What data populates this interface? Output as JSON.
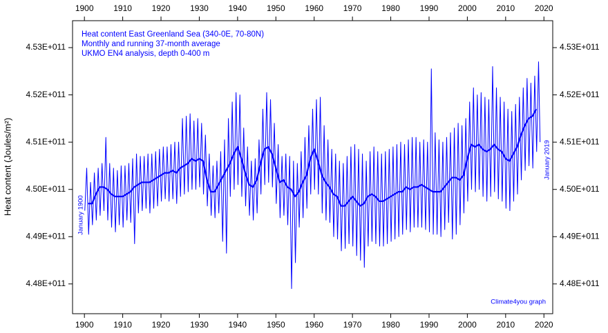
{
  "chart_data": {
    "type": "line",
    "title": "Heat content East Greenland Sea (340-0E, 70-80N)",
    "subtitle": [
      "Monthly and running 37-month average",
      "UKMO EN4 analysis, depth 0-400 m"
    ],
    "ylabel": "Heat content (Joules/m²)",
    "annotations": [
      "January 1900",
      "January 2019",
      "Climate4you graph"
    ],
    "xlim": [
      1896.9,
      2022.3
    ],
    "ylim": [
      447370000000.0,
      453570000000.0
    ],
    "xticks": [
      1900,
      1910,
      1920,
      1930,
      1940,
      1950,
      1960,
      1970,
      1980,
      1990,
      2000,
      2010,
      2020
    ],
    "yticks": [
      {
        "value": 448000000000.0,
        "label": "4.48E+011"
      },
      {
        "value": 449000000000.0,
        "label": "4.49E+011"
      },
      {
        "value": 450000000000.0,
        "label": "4.50E+011"
      },
      {
        "value": 451000000000.0,
        "label": "4.51E+011"
      },
      {
        "value": 452000000000.0,
        "label": "4.52E+011"
      },
      {
        "value": 453000000000.0,
        "label": "4.53E+011"
      }
    ],
    "grid": false,
    "series": [
      {
        "color": "#0000ff",
        "width": 1,
        "x": [
          1900.1,
          1900.6,
          1901.1,
          1901.6,
          1902.1,
          1902.6,
          1903.1,
          1903.6,
          1904.1,
          1904.6,
          1905.1,
          1905.6,
          1906.1,
          1906.6,
          1907.1,
          1907.6,
          1908.1,
          1908.6,
          1909.1,
          1909.6,
          1910.1,
          1910.6,
          1911.1,
          1911.6,
          1912.1,
          1912.6,
          1913.1,
          1913.6,
          1914.1,
          1914.6,
          1915.1,
          1915.6,
          1916.1,
          1916.6,
          1917.1,
          1917.6,
          1918.1,
          1918.6,
          1919.1,
          1919.6,
          1920.1,
          1920.6,
          1921.1,
          1921.6,
          1922.1,
          1922.6,
          1923.1,
          1923.6,
          1924.1,
          1924.6,
          1925.1,
          1925.6,
          1926.1,
          1926.6,
          1927.1,
          1927.6,
          1928.1,
          1928.6,
          1929.1,
          1929.6,
          1930.1,
          1930.6,
          1931.1,
          1931.6,
          1932.1,
          1932.6,
          1933.1,
          1933.6,
          1934.1,
          1934.6,
          1935.1,
          1935.6,
          1936.1,
          1936.6,
          1937.1,
          1937.6,
          1938.1,
          1938.6,
          1939.1,
          1939.6,
          1940.1,
          1940.6,
          1941.1,
          1941.6,
          1942.1,
          1942.6,
          1943.1,
          1943.6,
          1944.1,
          1944.6,
          1945.1,
          1945.6,
          1946.1,
          1946.6,
          1947.1,
          1947.6,
          1948.1,
          1948.6,
          1949.1,
          1949.6,
          1950.1,
          1950.6,
          1951.1,
          1951.6,
          1952.1,
          1952.6,
          1953.1,
          1953.6,
          1954.1,
          1954.6,
          1955.1,
          1955.6,
          1956.1,
          1956.6,
          1957.1,
          1957.6,
          1958.1,
          1958.6,
          1959.1,
          1959.6,
          1960.1,
          1960.6,
          1961.1,
          1961.6,
          1962.1,
          1962.6,
          1963.1,
          1963.6,
          1964.1,
          1964.6,
          1965.1,
          1965.6,
          1966.1,
          1966.6,
          1967.1,
          1967.6,
          1968.1,
          1968.6,
          1969.1,
          1969.6,
          1970.1,
          1970.6,
          1971.1,
          1971.6,
          1972.1,
          1972.6,
          1973.1,
          1973.6,
          1974.1,
          1974.6,
          1975.1,
          1975.6,
          1976.1,
          1976.6,
          1977.1,
          1977.6,
          1978.1,
          1978.6,
          1979.1,
          1979.6,
          1980.1,
          1980.6,
          1981.1,
          1981.6,
          1982.1,
          1982.6,
          1983.1,
          1983.6,
          1984.1,
          1984.6,
          1985.1,
          1985.6,
          1986.1,
          1986.6,
          1987.1,
          1987.6,
          1988.1,
          1988.6,
          1989.1,
          1989.6,
          1990.1,
          1990.6,
          1991.1,
          1991.6,
          1992.1,
          1992.6,
          1993.1,
          1993.6,
          1994.1,
          1994.6,
          1995.1,
          1995.6,
          1996.1,
          1996.6,
          1997.1,
          1997.6,
          1998.1,
          1998.6,
          1999.1,
          1999.6,
          2000.1,
          2000.6,
          2001.1,
          2001.6,
          2002.1,
          2002.6,
          2003.1,
          2003.6,
          2004.1,
          2004.6,
          2005.1,
          2005.6,
          2006.1,
          2006.6,
          2007.1,
          2007.6,
          2008.1,
          2008.6,
          2009.1,
          2009.6,
          2010.1,
          2010.6,
          2011.1,
          2011.6,
          2012.1,
          2012.6,
          2013.1,
          2013.6,
          2014.1,
          2014.6,
          2015.1,
          2015.6,
          2016.1,
          2016.6,
          2017.1,
          2017.6,
          2018.1,
          2018.6,
          2019.0
        ],
        "values": [
          449550000000.0,
          450450000000.0,
          449050000000.0,
          450150000000.0,
          449250000000.0,
          450350000000.0,
          449350000000.0,
          450450000000.0,
          449450000000.0,
          450550000000.0,
          449550000000.0,
          451100000000.0,
          449350000000.0,
          450550000000.0,
          449200000000.0,
          450450000000.0,
          449100000000.0,
          450400000000.0,
          449250000000.0,
          450500000000.0,
          449200000000.0,
          450500000000.0,
          449350000000.0,
          450550000000.0,
          449300000000.0,
          450650000000.0,
          448850000000.0,
          450750000000.0,
          449500000000.0,
          450700000000.0,
          449550000000.0,
          450700000000.0,
          449600000000.0,
          450750000000.0,
          449500000000.0,
          450750000000.0,
          449600000000.0,
          450800000000.0,
          449650000000.0,
          450850000000.0,
          449750000000.0,
          450900000000.0,
          449800000000.0,
          450900000000.0,
          449750000000.0,
          450950000000.0,
          449800000000.0,
          451000000000.0,
          449700000000.0,
          451000000000.0,
          449850000000.0,
          451500000000.0,
          449900000000.0,
          451550000000.0,
          449950000000.0,
          451600000000.0,
          450000000000.0,
          451450000000.0,
          450000000000.0,
          451500000000.0,
          450050000000.0,
          451400000000.0,
          449900000000.0,
          451150000000.0,
          449650000000.0,
          450750000000.0,
          449450000000.0,
          450500000000.0,
          449400000000.0,
          450600000000.0,
          449500000000.0,
          450800000000.0,
          448900000000.0,
          451050000000.0,
          448650000000.0,
          451500000000.0,
          449850000000.0,
          451850000000.0,
          450000000000.0,
          452050000000.0,
          450100000000.0,
          452000000000.0,
          449850000000.0,
          451300000000.0,
          449650000000.0,
          450900000000.0,
          449450000000.0,
          450600000000.0,
          449350000000.0,
          450650000000.0,
          449500000000.0,
          451050000000.0,
          449900000000.0,
          451700000000.0,
          450100000000.0,
          452050000000.0,
          450150000000.0,
          451900000000.0,
          450050000000.0,
          451400000000.0,
          449700000000.0,
          450950000000.0,
          449400000000.0,
          450700000000.0,
          449450000000.0,
          450750000000.0,
          449250000000.0,
          450700000000.0,
          447900000000.0,
          450600000000.0,
          448450000000.0,
          450550000000.0,
          449200000000.0,
          450800000000.0,
          449400000000.0,
          451100000000.0,
          449600000000.0,
          451350000000.0,
          449900000000.0,
          451700000000.0,
          450000000000.0,
          451900000000.0,
          449900000000.0,
          451950000000.0,
          449500000000.0,
          451350000000.0,
          449350000000.0,
          451050000000.0,
          449300000000.0,
          450850000000.0,
          449000000000.0,
          450750000000.0,
          448950000000.0,
          450600000000.0,
          448700000000.0,
          450550000000.0,
          448750000000.0,
          450700000000.0,
          448850000000.0,
          450900000000.0,
          448800000000.0,
          450950000000.0,
          448600000000.0,
          450850000000.0,
          448500000000.0,
          450750000000.0,
          448350000000.0,
          450600000000.0,
          448800000000.0,
          450800000000.0,
          448900000000.0,
          450900000000.0,
          448850000000.0,
          450800000000.0,
          448800000000.0,
          450750000000.0,
          448800000000.0,
          450800000000.0,
          448850000000.0,
          450850000000.0,
          448900000000.0,
          450900000000.0,
          448950000000.0,
          450950000000.0,
          449000000000.0,
          451000000000.0,
          449050000000.0,
          450950000000.0,
          449150000000.0,
          451050000000.0,
          449100000000.0,
          451100000000.0,
          449200000000.0,
          451100000000.0,
          449200000000.0,
          451000000000.0,
          449200000000.0,
          451050000000.0,
          449150000000.0,
          451000000000.0,
          449100000000.0,
          452550000000.0,
          449050000000.0,
          451200000000.0,
          449050000000.0,
          451050000000.0,
          449000000000.0,
          451000000000.0,
          449150000000.0,
          451100000000.0,
          449300000000.0,
          451200000000.0,
          448950000000.0,
          451300000000.0,
          449050000000.0,
          451400000000.0,
          449250000000.0,
          451350000000.0,
          449500000000.0,
          451500000000.0,
          449750000000.0,
          451850000000.0,
          450000000000.0,
          452150000000.0,
          449950000000.0,
          452000000000.0,
          450000000000.0,
          452050000000.0,
          449850000000.0,
          451950000000.0,
          449750000000.0,
          451900000000.0,
          449850000000.0,
          452600000000.0,
          449950000000.0,
          452150000000.0,
          449800000000.0,
          451950000000.0,
          449750000000.0,
          451850000000.0,
          449600000000.0,
          451700000000.0,
          449550000000.0,
          451650000000.0,
          449750000000.0,
          451800000000.0,
          449900000000.0,
          451950000000.0,
          450200000000.0,
          452150000000.0,
          450400000000.0,
          452350000000.0,
          450500000000.0,
          452250000000.0,
          450450000000.0,
          452400000000.0,
          450800000000.0,
          452700000000.0,
          451000000000.0
        ]
      },
      {
        "color": "#0000ff",
        "width": 2.2,
        "x": [
          1901,
          1902,
          1903,
          1904,
          1905,
          1906,
          1907,
          1908,
          1909,
          1910,
          1911,
          1912,
          1913,
          1914,
          1915,
          1916,
          1917,
          1918,
          1919,
          1920,
          1921,
          1922,
          1923,
          1924,
          1925,
          1926,
          1927,
          1928,
          1929,
          1930,
          1931,
          1932,
          1933,
          1934,
          1935,
          1936,
          1937,
          1938,
          1939,
          1940,
          1941,
          1942,
          1943,
          1944,
          1945,
          1946,
          1947,
          1948,
          1949,
          1950,
          1951,
          1952,
          1953,
          1954,
          1955,
          1956,
          1957,
          1958,
          1959,
          1960,
          1961,
          1962,
          1963,
          1964,
          1965,
          1966,
          1967,
          1968,
          1969,
          1970,
          1971,
          1972,
          1973,
          1974,
          1975,
          1976,
          1977,
          1978,
          1979,
          1980,
          1981,
          1982,
          1983,
          1984,
          1985,
          1986,
          1987,
          1988,
          1989,
          1990,
          1991,
          1992,
          1993,
          1994,
          1995,
          1996,
          1997,
          1998,
          1999,
          2000,
          2001,
          2002,
          2003,
          2004,
          2005,
          2006,
          2007,
          2008,
          2009,
          2010,
          2011,
          2012,
          2013,
          2014,
          2015,
          2016,
          2017,
          2018
        ],
        "values": [
          449700000000.0,
          449700000000.0,
          449900000000.0,
          450050000000.0,
          450050000000.0,
          450000000000.0,
          449900000000.0,
          449850000000.0,
          449850000000.0,
          449850000000.0,
          449900000000.0,
          449950000000.0,
          450050000000.0,
          450100000000.0,
          450150000000.0,
          450150000000.0,
          450150000000.0,
          450200000000.0,
          450250000000.0,
          450300000000.0,
          450350000000.0,
          450350000000.0,
          450400000000.0,
          450350000000.0,
          450450000000.0,
          450500000000.0,
          450550000000.0,
          450650000000.0,
          450600000000.0,
          450650000000.0,
          450600000000.0,
          450200000000.0,
          449950000000.0,
          449950000000.0,
          450100000000.0,
          450250000000.0,
          450400000000.0,
          450550000000.0,
          450750000000.0,
          450900000000.0,
          450650000000.0,
          450350000000.0,
          450100000000.0,
          450050000000.0,
          450200000000.0,
          450550000000.0,
          450850000000.0,
          450900000000.0,
          450750000000.0,
          450450000000.0,
          450150000000.0,
          450200000000.0,
          450050000000.0,
          450000000000.0,
          449850000000.0,
          449950000000.0,
          450150000000.0,
          450300000000.0,
          450650000000.0,
          450850000000.0,
          450600000000.0,
          450300000000.0,
          450150000000.0,
          450050000000.0,
          449900000000.0,
          449850000000.0,
          449650000000.0,
          449650000000.0,
          449750000000.0,
          449850000000.0,
          449750000000.0,
          449650000000.0,
          449700000000.0,
          449850000000.0,
          449900000000.0,
          449850000000.0,
          449750000000.0,
          449750000000.0,
          449800000000.0,
          449850000000.0,
          449900000000.0,
          449950000000.0,
          449950000000.0,
          450050000000.0,
          450000000000.0,
          450050000000.0,
          450050000000.0,
          450100000000.0,
          450050000000.0,
          450000000000.0,
          449950000000.0,
          449950000000.0,
          449950000000.0,
          450050000000.0,
          450150000000.0,
          450250000000.0,
          450250000000.0,
          450200000000.0,
          450300000000.0,
          450650000000.0,
          450950000000.0,
          450900000000.0,
          450950000000.0,
          450850000000.0,
          450800000000.0,
          450850000000.0,
          450950000000.0,
          450850000000.0,
          450800000000.0,
          450650000000.0,
          450600000000.0,
          450750000000.0,
          450900000000.0,
          451150000000.0,
          451350000000.0,
          451500000000.0,
          451550000000.0,
          451700000000.0
        ]
      }
    ]
  }
}
